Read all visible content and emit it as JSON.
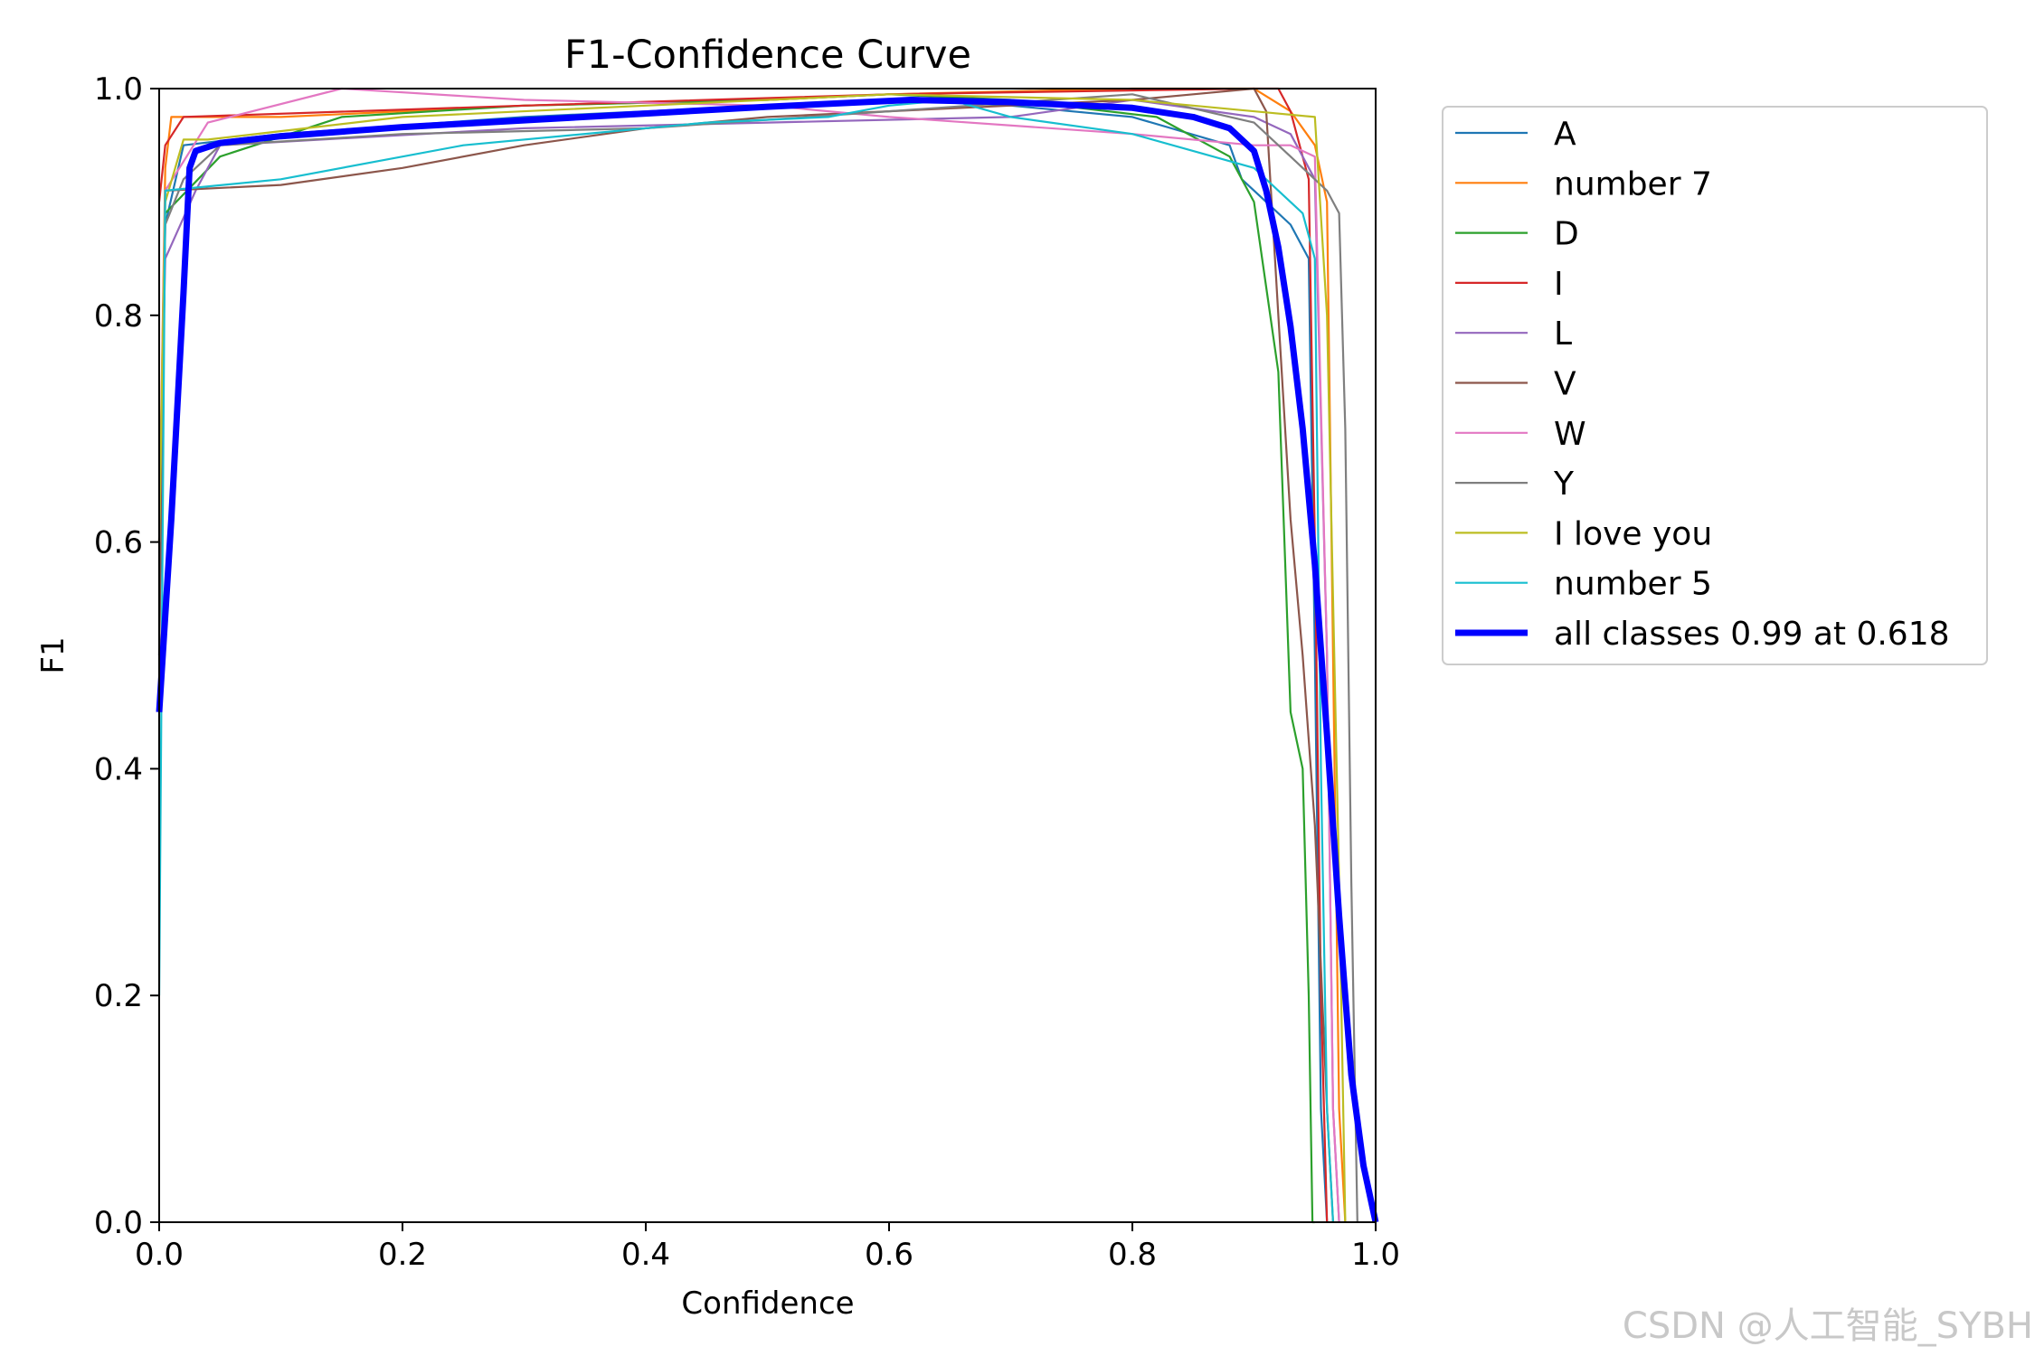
{
  "chart_data": {
    "type": "line",
    "title": "F1-Confidence Curve",
    "xlabel": "Confidence",
    "ylabel": "F1",
    "xlim": [
      0,
      1
    ],
    "ylim": [
      0,
      1
    ],
    "xticks": [
      "0.0",
      "0.2",
      "0.4",
      "0.6",
      "0.8",
      "1.0"
    ],
    "yticks": [
      "0.0",
      "0.2",
      "0.4",
      "0.6",
      "0.8",
      "1.0"
    ],
    "grid": false,
    "legend_position": "outside-right",
    "series": [
      {
        "name": "A",
        "color": "#1f77b4",
        "width": 2.2,
        "points": [
          [
            0,
            0.5
          ],
          [
            0.005,
            0.88
          ],
          [
            0.02,
            0.95
          ],
          [
            0.1,
            0.96
          ],
          [
            0.3,
            0.975
          ],
          [
            0.5,
            0.985
          ],
          [
            0.6,
            0.99
          ],
          [
            0.7,
            0.985
          ],
          [
            0.8,
            0.975
          ],
          [
            0.88,
            0.95
          ],
          [
            0.89,
            0.92
          ],
          [
            0.91,
            0.9
          ],
          [
            0.93,
            0.88
          ],
          [
            0.945,
            0.85
          ],
          [
            0.95,
            0.5
          ],
          [
            0.955,
            0.1
          ],
          [
            0.96,
            0
          ]
        ]
      },
      {
        "name": "number 7",
        "color": "#ff7f0e",
        "width": 2.2,
        "points": [
          [
            0,
            0.6
          ],
          [
            0.005,
            0.93
          ],
          [
            0.01,
            0.975
          ],
          [
            0.1,
            0.975
          ],
          [
            0.3,
            0.985
          ],
          [
            0.5,
            0.99
          ],
          [
            0.6,
            0.995
          ],
          [
            0.8,
            1.0
          ],
          [
            0.9,
            1.0
          ],
          [
            0.93,
            0.98
          ],
          [
            0.95,
            0.95
          ],
          [
            0.96,
            0.9
          ],
          [
            0.965,
            0.5
          ],
          [
            0.97,
            0.1
          ],
          [
            0.975,
            0
          ]
        ]
      },
      {
        "name": "D",
        "color": "#2ca02c",
        "width": 2.2,
        "points": [
          [
            0,
            0.6
          ],
          [
            0.005,
            0.89
          ],
          [
            0.05,
            0.94
          ],
          [
            0.15,
            0.975
          ],
          [
            0.3,
            0.985
          ],
          [
            0.5,
            0.99
          ],
          [
            0.6,
            0.995
          ],
          [
            0.7,
            0.99
          ],
          [
            0.82,
            0.975
          ],
          [
            0.88,
            0.94
          ],
          [
            0.9,
            0.9
          ],
          [
            0.92,
            0.75
          ],
          [
            0.93,
            0.45
          ],
          [
            0.94,
            0.4
          ],
          [
            0.945,
            0.2
          ],
          [
            0.948,
            0
          ],
          [
            0.95,
            0
          ]
        ]
      },
      {
        "name": "I",
        "color": "#d62728",
        "width": 2.2,
        "points": [
          [
            0,
            0.9
          ],
          [
            0.005,
            0.95
          ],
          [
            0.02,
            0.975
          ],
          [
            0.3,
            0.985
          ],
          [
            0.6,
            0.995
          ],
          [
            0.9,
            1.0
          ],
          [
            0.92,
            1.0
          ],
          [
            0.93,
            0.98
          ],
          [
            0.945,
            0.92
          ],
          [
            0.95,
            0.6
          ],
          [
            0.955,
            0.2
          ],
          [
            0.96,
            0
          ]
        ]
      },
      {
        "name": "L",
        "color": "#9467bd",
        "width": 2.2,
        "points": [
          [
            0,
            0.6
          ],
          [
            0.005,
            0.85
          ],
          [
            0.03,
            0.91
          ],
          [
            0.05,
            0.95
          ],
          [
            0.3,
            0.965
          ],
          [
            0.5,
            0.97
          ],
          [
            0.7,
            0.975
          ],
          [
            0.8,
            0.99
          ],
          [
            0.9,
            0.975
          ],
          [
            0.93,
            0.96
          ],
          [
            0.95,
            0.92
          ],
          [
            0.96,
            0.5
          ],
          [
            0.965,
            0.1
          ],
          [
            0.97,
            0
          ]
        ]
      },
      {
        "name": "V",
        "color": "#8c564b",
        "width": 2.2,
        "points": [
          [
            0,
            0.5
          ],
          [
            0.005,
            0.91
          ],
          [
            0.1,
            0.915
          ],
          [
            0.2,
            0.93
          ],
          [
            0.3,
            0.95
          ],
          [
            0.4,
            0.965
          ],
          [
            0.5,
            0.975
          ],
          [
            0.6,
            0.98
          ],
          [
            0.7,
            0.985
          ],
          [
            0.8,
            0.99
          ],
          [
            0.85,
            0.995
          ],
          [
            0.9,
            1.0
          ],
          [
            0.91,
            0.98
          ],
          [
            0.92,
            0.8
          ],
          [
            0.93,
            0.62
          ],
          [
            0.94,
            0.5
          ],
          [
            0.95,
            0.35
          ],
          [
            0.96,
            0.1
          ],
          [
            0.965,
            0
          ]
        ]
      },
      {
        "name": "W",
        "color": "#e377c2",
        "width": 2.2,
        "points": [
          [
            0,
            0.6
          ],
          [
            0.005,
            0.91
          ],
          [
            0.04,
            0.97
          ],
          [
            0.15,
            1.0
          ],
          [
            0.3,
            0.99
          ],
          [
            0.5,
            0.985
          ],
          [
            0.6,
            0.975
          ],
          [
            0.8,
            0.96
          ],
          [
            0.9,
            0.95
          ],
          [
            0.93,
            0.95
          ],
          [
            0.95,
            0.94
          ],
          [
            0.96,
            0.5
          ],
          [
            0.965,
            0.1
          ],
          [
            0.97,
            0
          ]
        ]
      },
      {
        "name": "Y",
        "color": "#7f7f7f",
        "width": 2.2,
        "points": [
          [
            0,
            0.6
          ],
          [
            0.005,
            0.88
          ],
          [
            0.02,
            0.92
          ],
          [
            0.05,
            0.95
          ],
          [
            0.2,
            0.96
          ],
          [
            0.4,
            0.965
          ],
          [
            0.6,
            0.98
          ],
          [
            0.8,
            0.995
          ],
          [
            0.9,
            0.97
          ],
          [
            0.93,
            0.94
          ],
          [
            0.96,
            0.91
          ],
          [
            0.97,
            0.89
          ],
          [
            0.975,
            0.7
          ],
          [
            0.98,
            0.3
          ],
          [
            0.985,
            0
          ]
        ]
      },
      {
        "name": "I love you",
        "color": "#bcbd22",
        "width": 2.2,
        "points": [
          [
            0,
            0.6
          ],
          [
            0.005,
            0.9
          ],
          [
            0.02,
            0.955
          ],
          [
            0.04,
            0.955
          ],
          [
            0.2,
            0.975
          ],
          [
            0.4,
            0.985
          ],
          [
            0.6,
            0.995
          ],
          [
            0.8,
            0.99
          ],
          [
            0.95,
            0.975
          ],
          [
            0.96,
            0.8
          ],
          [
            0.97,
            0.3
          ],
          [
            0.975,
            0
          ]
        ]
      },
      {
        "name": "number 5",
        "color": "#17becf",
        "width": 2.2,
        "points": [
          [
            0,
            0.2
          ],
          [
            0.005,
            0.91
          ],
          [
            0.1,
            0.92
          ],
          [
            0.25,
            0.95
          ],
          [
            0.45,
            0.97
          ],
          [
            0.55,
            0.975
          ],
          [
            0.6,
            0.985
          ],
          [
            0.65,
            0.99
          ],
          [
            0.7,
            0.975
          ],
          [
            0.8,
            0.96
          ],
          [
            0.9,
            0.93
          ],
          [
            0.94,
            0.89
          ],
          [
            0.95,
            0.85
          ],
          [
            0.955,
            0.4
          ],
          [
            0.96,
            0.1
          ],
          [
            0.965,
            0
          ]
        ]
      },
      {
        "name": "all classes 0.99 at 0.618",
        "color": "#0000ff",
        "width": 7,
        "points": [
          [
            0,
            0.45
          ],
          [
            0.01,
            0.62
          ],
          [
            0.02,
            0.82
          ],
          [
            0.025,
            0.93
          ],
          [
            0.03,
            0.945
          ],
          [
            0.05,
            0.952
          ],
          [
            0.1,
            0.958
          ],
          [
            0.2,
            0.966
          ],
          [
            0.3,
            0.972
          ],
          [
            0.4,
            0.978
          ],
          [
            0.5,
            0.984
          ],
          [
            0.618,
            0.99
          ],
          [
            0.7,
            0.988
          ],
          [
            0.8,
            0.983
          ],
          [
            0.85,
            0.975
          ],
          [
            0.88,
            0.965
          ],
          [
            0.9,
            0.945
          ],
          [
            0.91,
            0.91
          ],
          [
            0.92,
            0.86
          ],
          [
            0.93,
            0.79
          ],
          [
            0.94,
            0.7
          ],
          [
            0.95,
            0.58
          ],
          [
            0.96,
            0.43
          ],
          [
            0.97,
            0.27
          ],
          [
            0.98,
            0.13
          ],
          [
            0.99,
            0.05
          ],
          [
            1.0,
            0.0
          ]
        ]
      }
    ]
  },
  "watermark": "CSDN @人工智能_SYBH"
}
